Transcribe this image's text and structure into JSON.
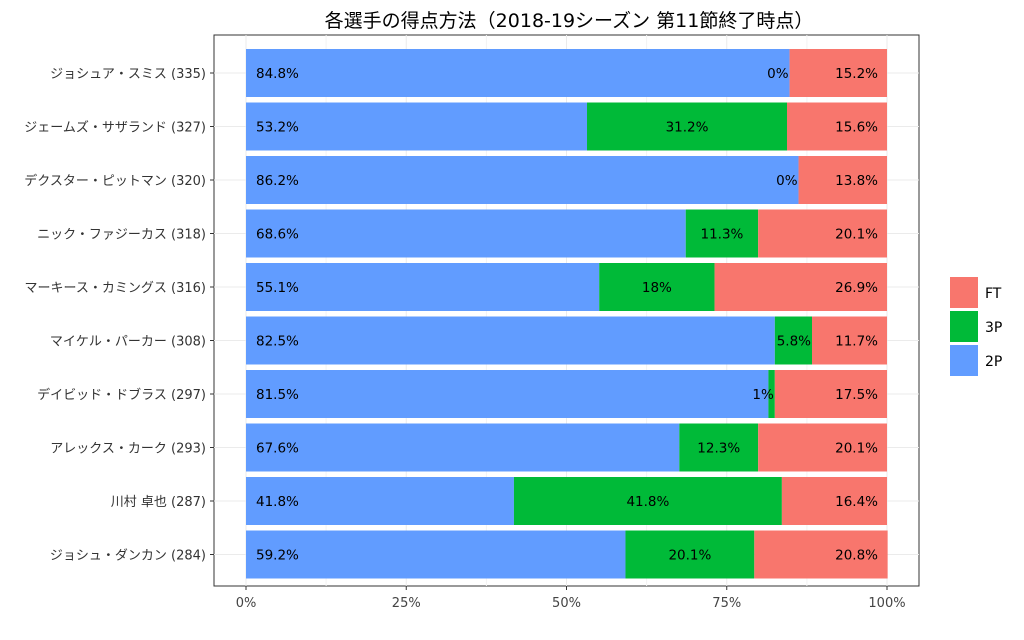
{
  "chart_data": {
    "type": "bar",
    "orientation": "horizontal",
    "stacked": true,
    "title": "各選手の得点方法（2018-19シーズン 第11節終了時点）",
    "xlabel": "",
    "ylabel": "",
    "xlim": [
      0,
      100
    ],
    "x_ticks": [
      "0%",
      "25%",
      "50%",
      "75%",
      "100%"
    ],
    "grid": true,
    "legend_position": "right",
    "categories": [
      "ジョシュア・スミス (335)",
      "ジェームズ・サザランド (327)",
      "デクスター・ピットマン (320)",
      "ニック・ファジーカス (318)",
      "マーキース・カミングス (316)",
      "マイケル・パーカー (308)",
      "デイビッド・ドブラス (297)",
      "アレックス・カーク (293)",
      "川村 卓也 (287)",
      "ジョシュ・ダンカン (284)"
    ],
    "series": [
      {
        "name": "2P",
        "color": "#619CFF",
        "values": [
          84.8,
          53.2,
          86.2,
          68.6,
          55.1,
          82.5,
          81.5,
          67.6,
          41.8,
          59.2
        ],
        "labels": [
          "84.8%",
          "53.2%",
          "86.2%",
          "68.6%",
          "55.1%",
          "82.5%",
          "81.5%",
          "67.6%",
          "41.8%",
          "59.2%"
        ]
      },
      {
        "name": "3P",
        "color": "#00BA38",
        "values": [
          0,
          31.2,
          0,
          11.3,
          18,
          5.8,
          1,
          12.3,
          41.8,
          20.1
        ],
        "labels": [
          "0%",
          "31.2%",
          "0%",
          "11.3%",
          "18%",
          "5.8%",
          "1%",
          "12.3%",
          "41.8%",
          "20.1%"
        ]
      },
      {
        "name": "FT",
        "color": "#F8766D",
        "values": [
          15.2,
          15.6,
          13.8,
          20.1,
          26.9,
          11.7,
          17.5,
          20.1,
          16.4,
          20.8
        ],
        "labels": [
          "15.2%",
          "15.6%",
          "13.8%",
          "20.1%",
          "26.9%",
          "11.7%",
          "17.5%",
          "20.1%",
          "16.4%",
          "20.8%"
        ]
      }
    ],
    "legend_order": [
      "FT",
      "3P",
      "2P"
    ]
  }
}
